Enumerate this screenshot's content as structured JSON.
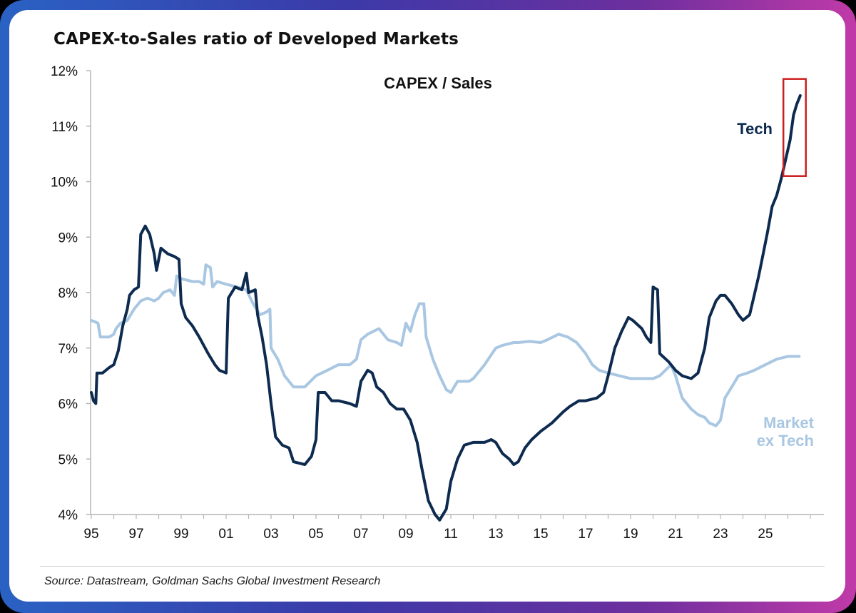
{
  "header": {
    "title": "CAPEX-to-Sales ratio of Developed Markets"
  },
  "footer": {
    "source": "Source: Datastream, Goldman Sachs Global Investment Research"
  },
  "chart_data": {
    "type": "line",
    "title": "CAPEX / Sales",
    "xlabel": "",
    "ylabel": "",
    "xlim": [
      1995,
      2027
    ],
    "ylim": [
      4,
      12
    ],
    "x_tick_values": [
      1995,
      1997,
      1999,
      2001,
      2003,
      2005,
      2007,
      2009,
      2011,
      2013,
      2015,
      2017,
      2019,
      2021,
      2023,
      2025
    ],
    "x_tick_labels": [
      "95",
      "97",
      "99",
      "01",
      "03",
      "05",
      "07",
      "09",
      "11",
      "13",
      "15",
      "17",
      "19",
      "21",
      "23",
      "25"
    ],
    "y_tick_values": [
      4,
      5,
      6,
      7,
      8,
      9,
      10,
      11,
      12
    ],
    "y_tick_labels": [
      "4%",
      "5%",
      "6%",
      "7%",
      "8%",
      "9%",
      "10%",
      "11%",
      "12%"
    ],
    "grid": false,
    "highlight": {
      "x_range": [
        2025.8,
        2026.8
      ],
      "y_range": [
        10.1,
        11.85
      ],
      "color": "#cc1f1f"
    },
    "series": [
      {
        "name": "Market ex Tech",
        "label": "Market\nex Tech",
        "color": "#a9c7e2",
        "points": [
          [
            1995.0,
            7.5
          ],
          [
            1995.3,
            7.45
          ],
          [
            1995.4,
            7.2
          ],
          [
            1995.8,
            7.2
          ],
          [
            1996.0,
            7.25
          ],
          [
            1996.1,
            7.35
          ],
          [
            1996.3,
            7.45
          ],
          [
            1996.6,
            7.5
          ],
          [
            1996.9,
            7.7
          ],
          [
            1997.2,
            7.85
          ],
          [
            1997.5,
            7.9
          ],
          [
            1997.8,
            7.85
          ],
          [
            1998.0,
            7.9
          ],
          [
            1998.2,
            8.0
          ],
          [
            1998.5,
            8.05
          ],
          [
            1998.7,
            7.95
          ],
          [
            1998.8,
            8.3
          ],
          [
            1999.0,
            8.25
          ],
          [
            1999.5,
            8.2
          ],
          [
            1999.8,
            8.2
          ],
          [
            2000.0,
            8.15
          ],
          [
            2000.1,
            8.5
          ],
          [
            2000.3,
            8.45
          ],
          [
            2000.4,
            8.1
          ],
          [
            2000.6,
            8.2
          ],
          [
            2001.0,
            8.15
          ],
          [
            2001.5,
            8.1
          ],
          [
            2001.9,
            8.05
          ],
          [
            2002.2,
            7.8
          ],
          [
            2002.5,
            7.6
          ],
          [
            2002.8,
            7.65
          ],
          [
            2002.95,
            7.7
          ],
          [
            2003.0,
            7.0
          ],
          [
            2003.3,
            6.8
          ],
          [
            2003.6,
            6.5
          ],
          [
            2004.0,
            6.3
          ],
          [
            2004.5,
            6.3
          ],
          [
            2005.0,
            6.5
          ],
          [
            2005.5,
            6.6
          ],
          [
            2006.0,
            6.7
          ],
          [
            2006.5,
            6.7
          ],
          [
            2006.8,
            6.8
          ],
          [
            2007.0,
            7.15
          ],
          [
            2007.3,
            7.25
          ],
          [
            2007.8,
            7.35
          ],
          [
            2008.2,
            7.15
          ],
          [
            2008.6,
            7.1
          ],
          [
            2008.8,
            7.05
          ],
          [
            2009.0,
            7.45
          ],
          [
            2009.2,
            7.3
          ],
          [
            2009.4,
            7.6
          ],
          [
            2009.6,
            7.8
          ],
          [
            2009.8,
            7.8
          ],
          [
            2009.9,
            7.2
          ],
          [
            2010.2,
            6.8
          ],
          [
            2010.5,
            6.5
          ],
          [
            2010.8,
            6.25
          ],
          [
            2011.0,
            6.2
          ],
          [
            2011.3,
            6.4
          ],
          [
            2011.8,
            6.4
          ],
          [
            2012.0,
            6.45
          ],
          [
            2012.5,
            6.7
          ],
          [
            2013.0,
            7.0
          ],
          [
            2013.3,
            7.05
          ],
          [
            2013.8,
            7.1
          ],
          [
            2014.0,
            7.1
          ],
          [
            2014.5,
            7.12
          ],
          [
            2015.0,
            7.1
          ],
          [
            2015.3,
            7.15
          ],
          [
            2015.8,
            7.25
          ],
          [
            2016.2,
            7.2
          ],
          [
            2016.6,
            7.1
          ],
          [
            2017.0,
            6.9
          ],
          [
            2017.3,
            6.7
          ],
          [
            2017.6,
            6.6
          ],
          [
            2018.0,
            6.55
          ],
          [
            2018.5,
            6.5
          ],
          [
            2019.0,
            6.45
          ],
          [
            2019.5,
            6.45
          ],
          [
            2020.0,
            6.45
          ],
          [
            2020.3,
            6.5
          ],
          [
            2020.8,
            6.7
          ],
          [
            2021.0,
            6.5
          ],
          [
            2021.3,
            6.1
          ],
          [
            2021.7,
            5.9
          ],
          [
            2022.0,
            5.8
          ],
          [
            2022.3,
            5.75
          ],
          [
            2022.5,
            5.65
          ],
          [
            2022.8,
            5.6
          ],
          [
            2023.0,
            5.7
          ],
          [
            2023.2,
            6.1
          ],
          [
            2023.5,
            6.3
          ],
          [
            2023.8,
            6.5
          ],
          [
            2024.2,
            6.55
          ],
          [
            2024.5,
            6.6
          ],
          [
            2025.0,
            6.7
          ],
          [
            2025.5,
            6.8
          ],
          [
            2026.0,
            6.85
          ],
          [
            2026.5,
            6.85
          ]
        ]
      },
      {
        "name": "Tech",
        "label": "Tech",
        "color": "#0d2a4f",
        "points": [
          [
            1995.0,
            6.2
          ],
          [
            1995.1,
            6.05
          ],
          [
            1995.2,
            6.0
          ],
          [
            1995.25,
            6.55
          ],
          [
            1995.5,
            6.55
          ],
          [
            1995.8,
            6.65
          ],
          [
            1996.0,
            6.7
          ],
          [
            1996.2,
            6.95
          ],
          [
            1996.4,
            7.4
          ],
          [
            1996.6,
            7.7
          ],
          [
            1996.7,
            7.95
          ],
          [
            1996.9,
            8.05
          ],
          [
            1997.1,
            8.1
          ],
          [
            1997.2,
            9.05
          ],
          [
            1997.4,
            9.2
          ],
          [
            1997.6,
            9.05
          ],
          [
            1997.8,
            8.7
          ],
          [
            1997.9,
            8.4
          ],
          [
            1998.1,
            8.8
          ],
          [
            1998.4,
            8.7
          ],
          [
            1998.7,
            8.65
          ],
          [
            1998.9,
            8.6
          ],
          [
            1999.0,
            7.8
          ],
          [
            1999.2,
            7.55
          ],
          [
            1999.5,
            7.4
          ],
          [
            1999.8,
            7.2
          ],
          [
            2000.2,
            6.9
          ],
          [
            2000.5,
            6.7
          ],
          [
            2000.7,
            6.6
          ],
          [
            2001.0,
            6.55
          ],
          [
            2001.1,
            7.9
          ],
          [
            2001.4,
            8.1
          ],
          [
            2001.7,
            8.05
          ],
          [
            2001.9,
            8.35
          ],
          [
            2002.0,
            8.0
          ],
          [
            2002.3,
            8.05
          ],
          [
            2002.4,
            7.6
          ],
          [
            2002.6,
            7.2
          ],
          [
            2002.8,
            6.7
          ],
          [
            2003.0,
            6.0
          ],
          [
            2003.2,
            5.4
          ],
          [
            2003.5,
            5.25
          ],
          [
            2003.8,
            5.2
          ],
          [
            2004.0,
            4.95
          ],
          [
            2004.5,
            4.9
          ],
          [
            2004.8,
            5.05
          ],
          [
            2005.0,
            5.35
          ],
          [
            2005.1,
            6.2
          ],
          [
            2005.4,
            6.2
          ],
          [
            2005.7,
            6.05
          ],
          [
            2006.0,
            6.05
          ],
          [
            2006.5,
            6.0
          ],
          [
            2006.8,
            5.95
          ],
          [
            2007.0,
            6.4
          ],
          [
            2007.3,
            6.6
          ],
          [
            2007.5,
            6.55
          ],
          [
            2007.7,
            6.3
          ],
          [
            2008.0,
            6.2
          ],
          [
            2008.3,
            6.0
          ],
          [
            2008.6,
            5.9
          ],
          [
            2008.9,
            5.9
          ],
          [
            2009.2,
            5.7
          ],
          [
            2009.5,
            5.3
          ],
          [
            2009.7,
            4.85
          ],
          [
            2010.0,
            4.25
          ],
          [
            2010.3,
            4.0
          ],
          [
            2010.5,
            3.9
          ],
          [
            2010.8,
            4.1
          ],
          [
            2011.0,
            4.6
          ],
          [
            2011.3,
            5.0
          ],
          [
            2011.6,
            5.25
          ],
          [
            2012.0,
            5.3
          ],
          [
            2012.5,
            5.3
          ],
          [
            2012.8,
            5.35
          ],
          [
            2013.0,
            5.3
          ],
          [
            2013.3,
            5.1
          ],
          [
            2013.6,
            5.0
          ],
          [
            2013.8,
            4.9
          ],
          [
            2014.0,
            4.95
          ],
          [
            2014.3,
            5.2
          ],
          [
            2014.6,
            5.35
          ],
          [
            2015.0,
            5.5
          ],
          [
            2015.5,
            5.65
          ],
          [
            2016.0,
            5.85
          ],
          [
            2016.3,
            5.95
          ],
          [
            2016.7,
            6.05
          ],
          [
            2017.0,
            6.05
          ],
          [
            2017.5,
            6.1
          ],
          [
            2017.8,
            6.2
          ],
          [
            2018.0,
            6.5
          ],
          [
            2018.3,
            7.0
          ],
          [
            2018.6,
            7.3
          ],
          [
            2018.9,
            7.55
          ],
          [
            2019.1,
            7.5
          ],
          [
            2019.5,
            7.35
          ],
          [
            2019.7,
            7.2
          ],
          [
            2019.9,
            7.1
          ],
          [
            2020.0,
            8.1
          ],
          [
            2020.2,
            8.05
          ],
          [
            2020.3,
            6.9
          ],
          [
            2020.7,
            6.75
          ],
          [
            2021.0,
            6.6
          ],
          [
            2021.3,
            6.5
          ],
          [
            2021.7,
            6.45
          ],
          [
            2022.0,
            6.55
          ],
          [
            2022.3,
            7.0
          ],
          [
            2022.5,
            7.55
          ],
          [
            2022.8,
            7.85
          ],
          [
            2023.0,
            7.95
          ],
          [
            2023.2,
            7.95
          ],
          [
            2023.5,
            7.8
          ],
          [
            2023.8,
            7.6
          ],
          [
            2024.0,
            7.5
          ],
          [
            2024.3,
            7.6
          ],
          [
            2024.5,
            7.95
          ],
          [
            2024.7,
            8.3
          ],
          [
            2024.9,
            8.7
          ],
          [
            2025.1,
            9.1
          ],
          [
            2025.3,
            9.55
          ],
          [
            2025.5,
            9.75
          ],
          [
            2025.7,
            10.05
          ],
          [
            2025.9,
            10.4
          ],
          [
            2026.1,
            10.75
          ],
          [
            2026.25,
            11.2
          ],
          [
            2026.4,
            11.4
          ],
          [
            2026.5,
            11.5
          ],
          [
            2026.55,
            11.55
          ]
        ]
      }
    ]
  }
}
